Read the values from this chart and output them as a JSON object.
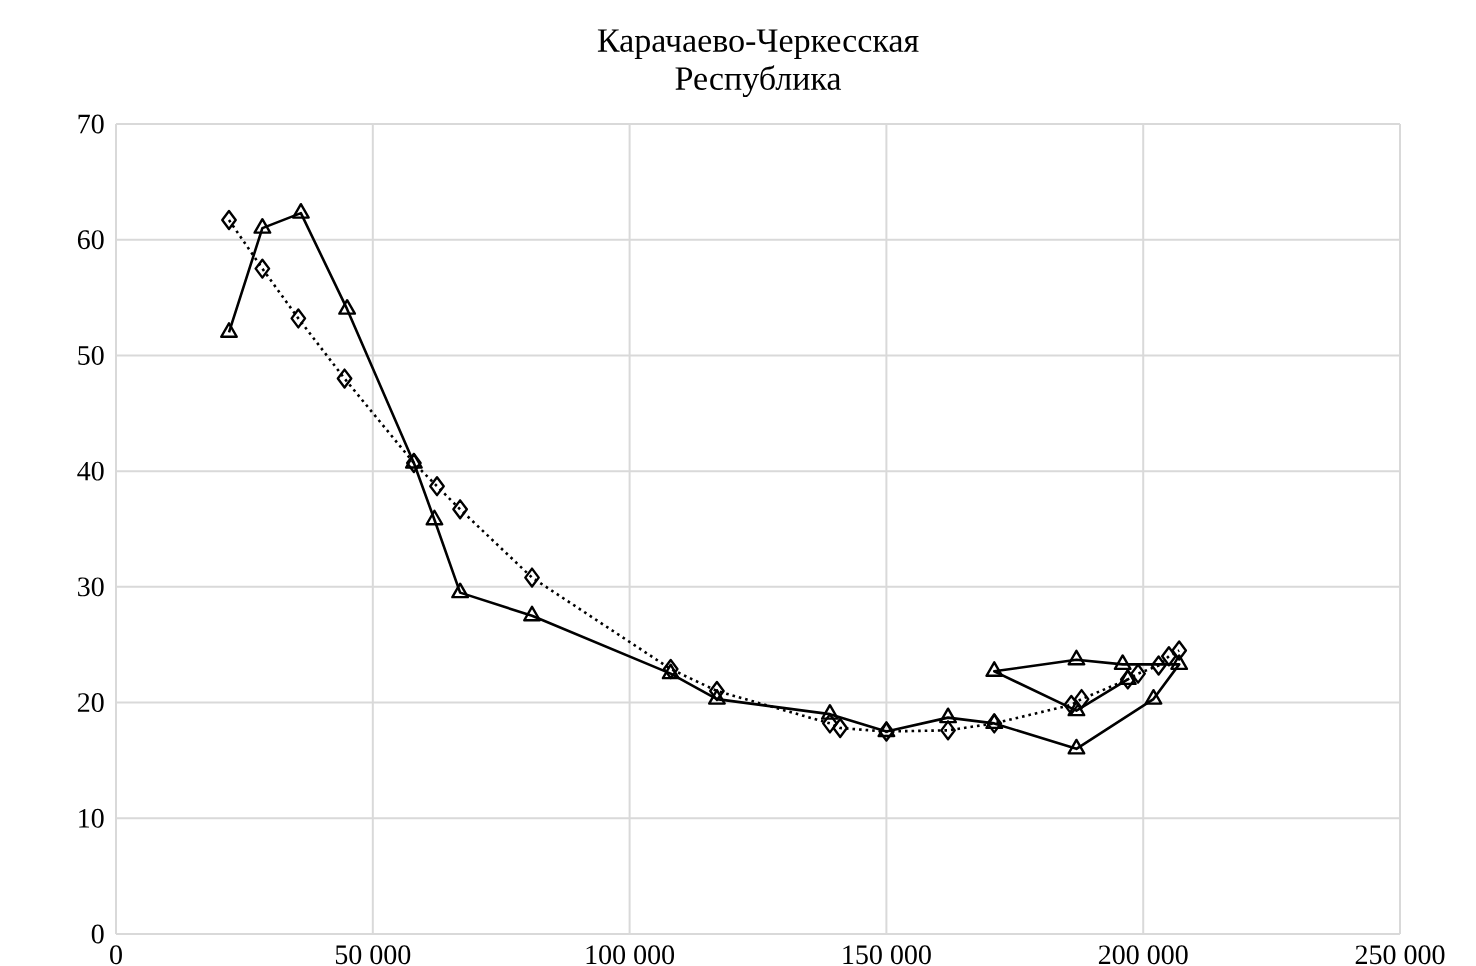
{
  "chart_data": {
    "type": "line",
    "title": "Карачаево-Черкесская Республика",
    "xlim": [
      0,
      250000
    ],
    "ylim": [
      0,
      70
    ],
    "xticks": [
      {
        "value": 0,
        "label": "0"
      },
      {
        "value": 50000,
        "label": "50 000"
      },
      {
        "value": 100000,
        "label": "100 000"
      },
      {
        "value": 150000,
        "label": "150 000"
      },
      {
        "value": 200000,
        "label": "200 000"
      },
      {
        "value": 250000,
        "label": "250 000"
      }
    ],
    "yticks": [
      0,
      10,
      20,
      30,
      40,
      50,
      60,
      70
    ],
    "grid": true,
    "legend": false,
    "series": [
      {
        "color": "#000000",
        "marker": "triangle",
        "line_style": "solid",
        "x": [
          22000,
          28500,
          36000,
          45000,
          58000,
          62000,
          67000,
          81000,
          108000,
          117000,
          139000,
          150000,
          162000,
          171000,
          187000,
          202000,
          207000,
          196000,
          187000,
          171000,
          187000,
          197000
        ],
        "values": [
          52,
          61,
          62.3,
          54,
          40.7,
          35.8,
          29.5,
          27.5,
          22.5,
          20.3,
          19,
          17.5,
          18.7,
          18.2,
          16,
          20.3,
          23.3,
          23.3,
          23.7,
          22.7,
          19.3,
          22
        ]
      },
      {
        "color": "#000000",
        "marker": "diamond",
        "line_style": "dotted",
        "x": [
          22000,
          28500,
          35500,
          44500,
          58000,
          62500,
          67000,
          81000,
          108000,
          117000,
          139000,
          141000,
          150000,
          162000,
          171000,
          186000,
          188000,
          197000,
          199000,
          203000,
          205000,
          207000
        ],
        "values": [
          61.7,
          57.5,
          53.2,
          48,
          40.7,
          38.7,
          36.7,
          30.8,
          22.9,
          21,
          18.2,
          17.8,
          17.5,
          17.6,
          18.2,
          19.8,
          20.3,
          22,
          22.5,
          23.2,
          24,
          24.5
        ]
      }
    ]
  }
}
